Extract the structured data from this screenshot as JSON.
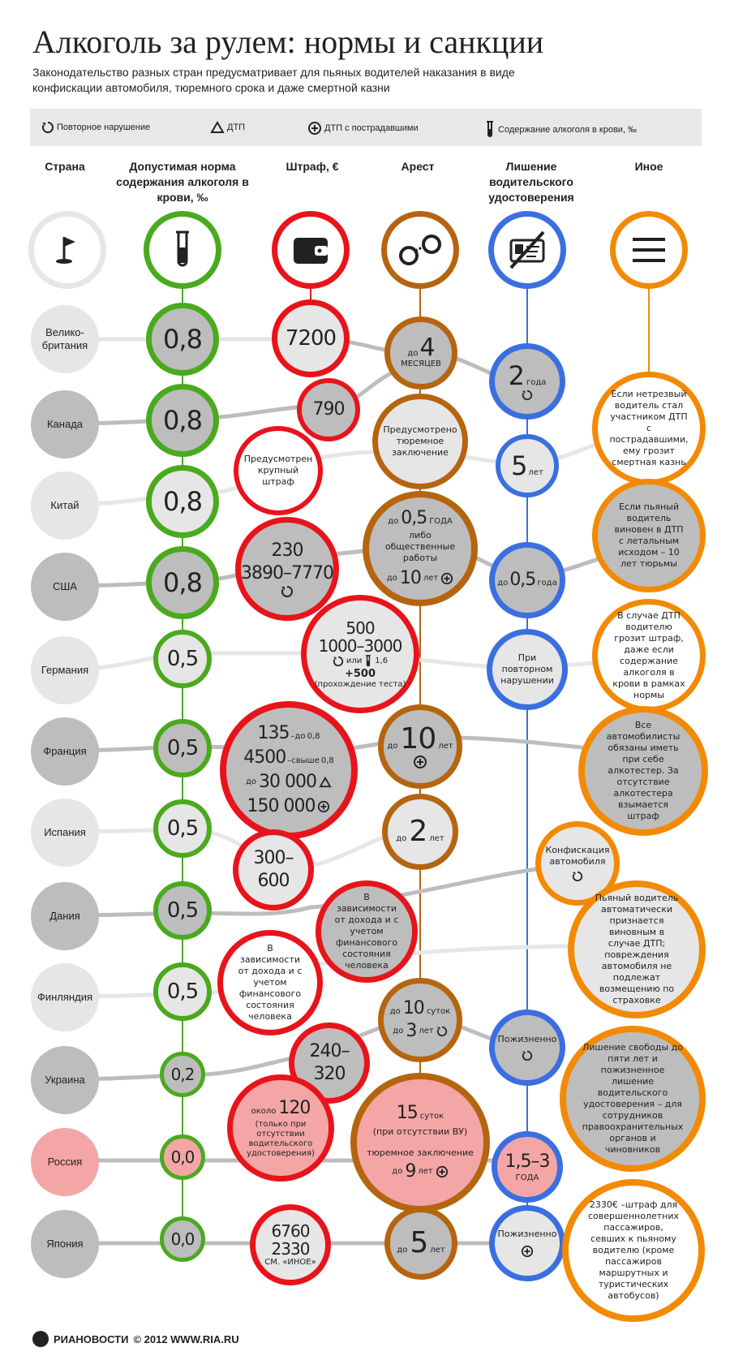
{
  "title": "Алкоголь за рулем: нормы и санкции",
  "subtitle": "Законодательство разных стран предусматривает для пьяных водителей наказания в виде конфискации автомобиля, тюремного срока и даже смертной казни",
  "legend": {
    "repeat": "Повторное нарушение",
    "accident": "ДТП",
    "injured": "ДТП с пострадавшими",
    "bac": "Содержание алкоголя в крови, ‰"
  },
  "columns": {
    "country": "Страна",
    "norm": "Допустимая норма содержания алкоголя в крови, ‰",
    "fine": "Штраф, €",
    "arrest": "Арест",
    "license": "Лишение водительского удостоверения",
    "other": "Иное"
  },
  "colors": {
    "green": "#4aaa1e",
    "red": "#e8141b",
    "brown": "#b5650f",
    "blue": "#3a6fe0",
    "orange": "#f28a06",
    "grey": "#bdbdbd",
    "lightgrey": "#e6e6e6",
    "pink": "#f4a6a6"
  },
  "countries": [
    "Велико-британия",
    "Канада",
    "Китай",
    "США",
    "Германия",
    "Франция",
    "Испания",
    "Дания",
    "Финляндия",
    "Украина",
    "Россия",
    "Япония"
  ],
  "norms": [
    "0,8",
    "0,8",
    "0,8",
    "0,8",
    "0,5",
    "0,5",
    "0,5",
    "0,5",
    "0,5",
    "0,2",
    "0,0",
    "0,0"
  ],
  "fines": {
    "uk": "7200",
    "canada": "790",
    "china": "Предусмотрен крупный штраф",
    "usa1": "230",
    "usa2": "3890–7770",
    "de1": "500",
    "de2": "1000–3000",
    "de_or": "или",
    "de_bac": "1,6",
    "de3": "+500",
    "de4": "(прохождение теста)",
    "fr1": "135",
    "fr1s": "–до",
    "fr1b": "0,8",
    "fr2": "4500",
    "fr2s": "–свыше",
    "fr2b": "0,8",
    "fr3p": "до",
    "fr3": "30 000",
    "fr4": "150 000",
    "es": "300–600",
    "dk": "В зависимости от дохода и с учетом финансового состояния человека",
    "fi": "В зависимости от дохода и с учетом финансового состояния человека",
    "ua": "240–320",
    "ru1p": "около",
    "ru1": "120",
    "ru2": "(только при отсутствии водительского удостоверения)",
    "jp1": "6760",
    "jp2": "2330",
    "jp3": "СМ. «ИНОЕ»"
  },
  "arrest": {
    "uk_pre": "до",
    "uk": "4",
    "uk_unit": "МЕСЯЦЕВ",
    "canada": "Предусмотрено тюремное заключение",
    "usa_pre": "до",
    "usa": "0,5",
    "usa_unit": "ГОДА",
    "usa2": "либо общественные работы",
    "usa3_pre": "до",
    "usa3": "10",
    "usa3_unit": "лет",
    "fr_pre": "до",
    "fr": "10",
    "fr_unit": "лет",
    "es_pre": "до",
    "es": "2",
    "es_unit": "лет",
    "ua1_pre": "до",
    "ua1": "10",
    "ua1_unit": "суток",
    "ua2_pre": "до",
    "ua2": "3",
    "ua2_unit": "лет",
    "ru1": "15",
    "ru1_unit": "суток",
    "ru2": "(при отсутствии ВУ)",
    "ru3": "тюремное заключение",
    "ru4_pre": "до",
    "ru4": "9",
    "ru4_unit": "лет",
    "jp_pre": "до",
    "jp": "5",
    "jp_unit": "лет"
  },
  "license": {
    "uk": "2",
    "uk_unit": "года",
    "china": "5",
    "china_unit": "лет",
    "usa_pre": "до",
    "usa": "0,5",
    "usa_unit": "года",
    "de": "При повторном нарушении",
    "dk": "Конфискация автомобиля",
    "ua": "Пожизненно",
    "ru": "1,5–3",
    "ru_unit": "ГОДА",
    "jp": "Пожизненно"
  },
  "other": {
    "canada": "Если нетрезвый водитель стал участником ДТП с пострадавшими, ему грозит смертная казнь",
    "usa": "Если пьяный водитель виновен в ДТП с летальным исходом – 10 лет тюрьмы",
    "de": "В случае ДТП водителю грозит штраф, даже если содержание алкоголя в крови в рамках нормы",
    "fr": "Все автомобилисты обязаны иметь при себе алкотестер. За отсутствие алкотестера взымается штраф",
    "fi": "Пьяный водитель автоматически признается виновным в случае ДТП; повреждения автомобиля не подлежат возмещению по страховке",
    "ru": "Лишение свободы до пяти лет и пожизненное лишение водительского удостоверения – для сотрудников правоохранительных органов и чиновников",
    "jp": "2330€ –штраф для совершеннолетних пассажиров, севших к пьяному водителю (кроме пассажиров маршрутных и туристических автобусов)"
  },
  "footer": {
    "brand": "РИАНОВОСТИ",
    "copy": "© 2012 WWW.RIA.RU"
  }
}
